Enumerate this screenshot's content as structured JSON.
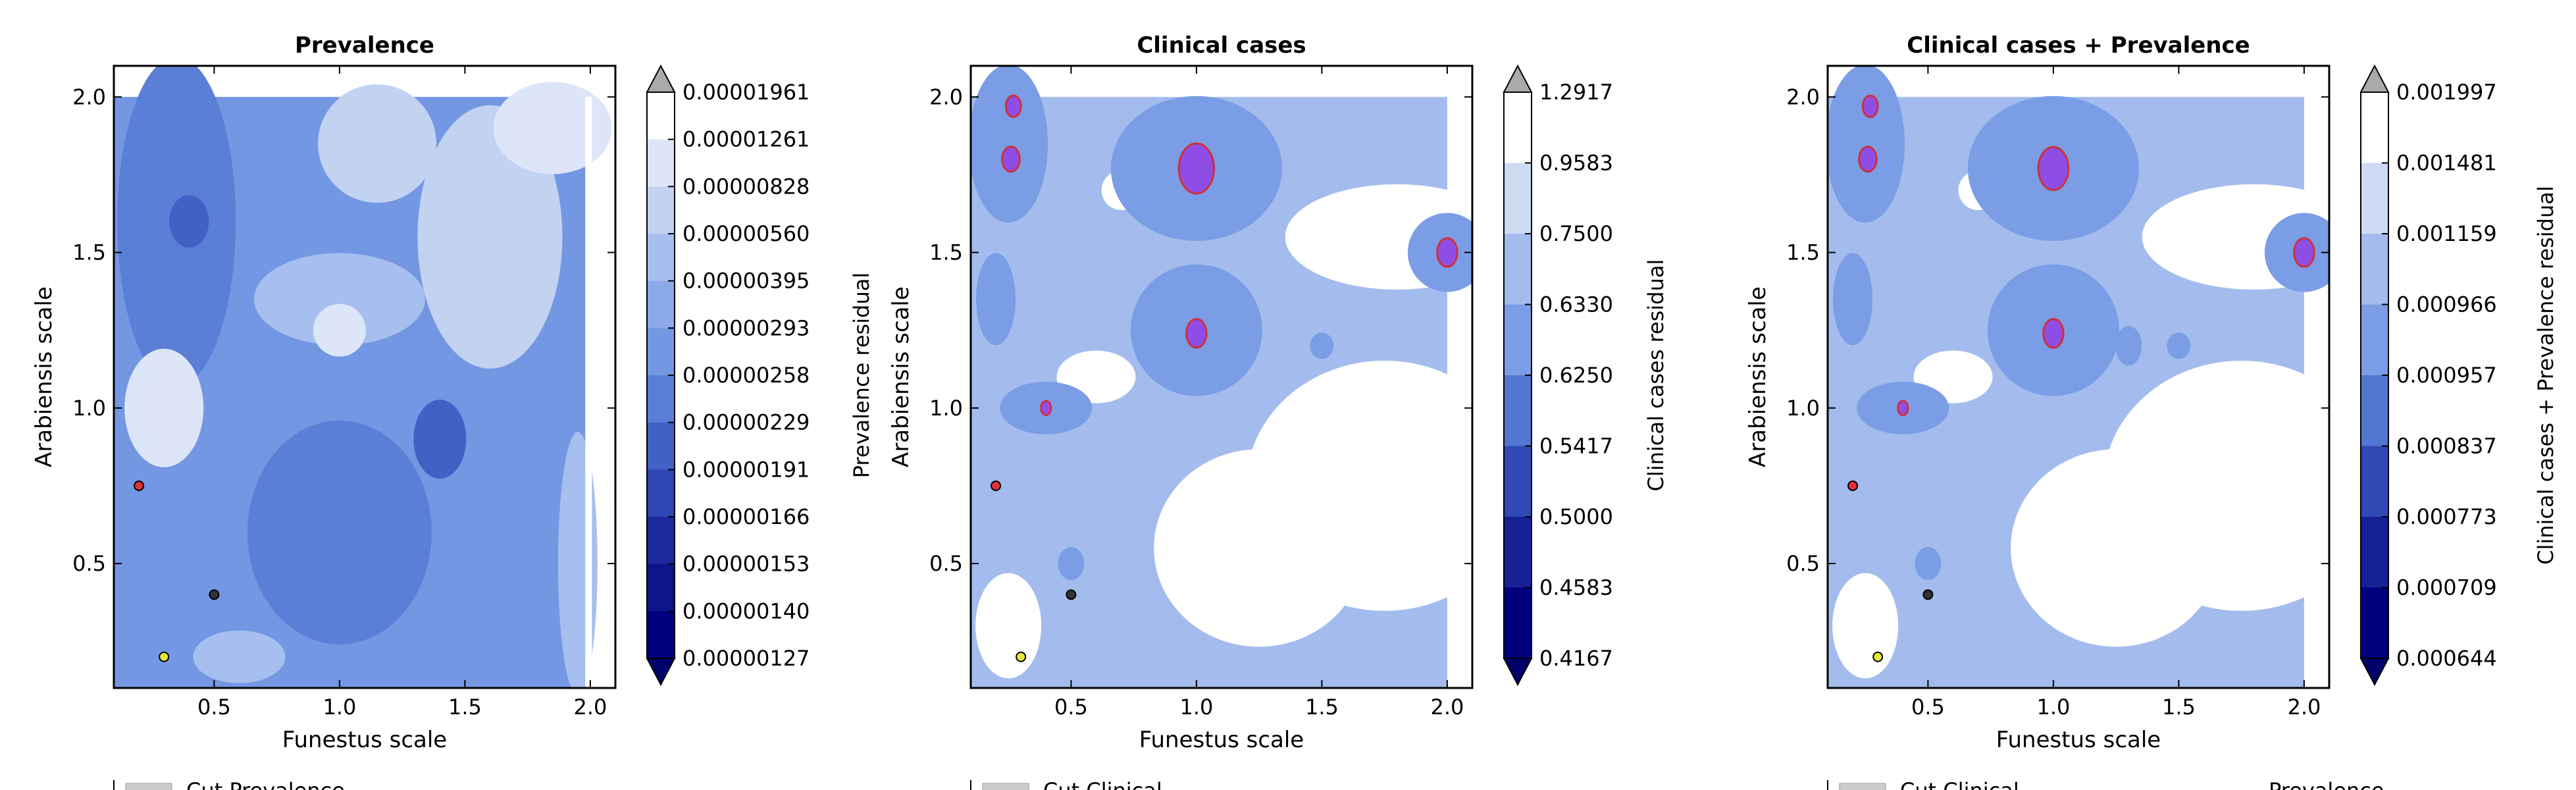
{
  "chart_data": [
    {
      "type": "heatmap",
      "title": "Prevalence",
      "xlabel": "Funestus scale",
      "ylabel": "Arabiensis scale",
      "xlim": [
        0.1,
        2.1
      ],
      "ylim": [
        0.1,
        2.1
      ],
      "xticks": [
        "0.5",
        "1.0",
        "1.5",
        "2.0"
      ],
      "yticks": [
        "0.5",
        "1.0",
        "1.5",
        "2.0"
      ],
      "colorbar_label": "Prevalence residual",
      "colorbar_levels": [
        "0.00001961",
        "0.00001261",
        "0.00000828",
        "0.00000560",
        "0.00000395",
        "0.00000293",
        "0.00000258",
        "0.00000229",
        "0.00000191",
        "0.00000166",
        "0.00000153",
        "0.00000140",
        "0.00000127"
      ],
      "markers": [
        {
          "x": 0.2,
          "y": 0.75,
          "color": "#e0303a"
        },
        {
          "x": 0.5,
          "y": 0.4,
          "color": "#333333"
        },
        {
          "x": 0.3,
          "y": 0.2,
          "color": "#e6e63a"
        }
      ],
      "highlight_regions": [],
      "legend": [
        "Cut Prevalence"
      ],
      "legend_placement": "below"
    },
    {
      "type": "heatmap",
      "title": "Clinical cases",
      "xlabel": "Funestus scale",
      "ylabel": "Arabiensis scale",
      "xlim": [
        0.1,
        2.1
      ],
      "ylim": [
        0.1,
        2.1
      ],
      "xticks": [
        "0.5",
        "1.0",
        "1.5",
        "2.0"
      ],
      "yticks": [
        "0.5",
        "1.0",
        "1.5",
        "2.0"
      ],
      "colorbar_label": "Clinical cases residual",
      "colorbar_levels": [
        "1.2917",
        "0.9583",
        "0.7500",
        "0.6330",
        "0.6250",
        "0.5417",
        "0.5000",
        "0.4583",
        "0.4167"
      ],
      "markers": [
        {
          "x": 0.2,
          "y": 0.75,
          "color": "#e0303a"
        },
        {
          "x": 0.5,
          "y": 0.4,
          "color": "#333333"
        },
        {
          "x": 0.3,
          "y": 0.2,
          "color": "#e6e63a"
        }
      ],
      "highlight_regions": [
        {
          "x": 1.0,
          "y": 1.77,
          "r": 0.07
        },
        {
          "x": 1.0,
          "y": 1.24,
          "r": 0.04
        },
        {
          "x": 2.0,
          "y": 1.5,
          "r": 0.04
        },
        {
          "x": 0.26,
          "y": 1.8,
          "r": 0.035
        },
        {
          "x": 0.27,
          "y": 1.97,
          "r": 0.03
        },
        {
          "x": 0.4,
          "y": 1.0,
          "r": 0.02
        }
      ],
      "legend": [
        "Cut Clinical"
      ],
      "legend_placement": "below"
    },
    {
      "type": "heatmap",
      "title": "Clinical cases + Prevalence",
      "xlabel": "Funestus scale",
      "ylabel": "Arabiensis scale",
      "xlim": [
        0.1,
        2.1
      ],
      "ylim": [
        0.1,
        2.1
      ],
      "xticks": [
        "0.5",
        "1.0",
        "1.5",
        "2.0"
      ],
      "yticks": [
        "0.5",
        "1.0",
        "1.5",
        "2.0"
      ],
      "colorbar_label": "Clinical cases + Prevalence residual",
      "colorbar_levels": [
        "0.001997",
        "0.001481",
        "0.001159",
        "0.000966",
        "0.000957",
        "0.000837",
        "0.000773",
        "0.000709",
        "0.000644"
      ],
      "markers": [
        {
          "x": 0.2,
          "y": 0.75,
          "color": "#e0303a"
        },
        {
          "x": 0.5,
          "y": 0.4,
          "color": "#333333"
        },
        {
          "x": 0.3,
          "y": 0.2,
          "color": "#e6e63a"
        }
      ],
      "highlight_regions": [
        {
          "x": 1.0,
          "y": 1.77,
          "r": 0.06
        },
        {
          "x": 1.0,
          "y": 1.24,
          "r": 0.04
        },
        {
          "x": 2.0,
          "y": 1.5,
          "r": 0.04
        },
        {
          "x": 0.26,
          "y": 1.8,
          "r": 0.035
        },
        {
          "x": 0.27,
          "y": 1.97,
          "r": 0.03
        },
        {
          "x": 0.4,
          "y": 1.0,
          "r": 0.02
        }
      ],
      "legend": [
        "Cut Clinical",
        "Prevalence"
      ],
      "legend_placement": "below"
    }
  ],
  "colors": {
    "colorbar_top": "#ffffff",
    "colorbar_bottom": "#00007f",
    "extend_max": "#aaaaaa",
    "extend_min": "#00006a",
    "highlight_fill": "#8e4ee6",
    "highlight_edge": "#d0303a"
  }
}
